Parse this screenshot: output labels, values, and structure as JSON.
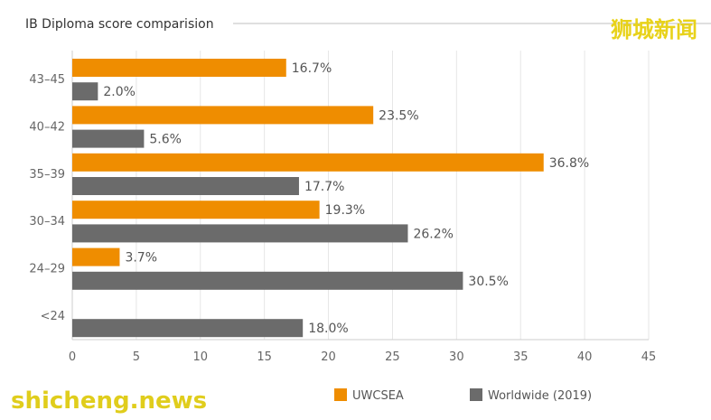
{
  "chart_data": {
    "type": "bar",
    "orientation": "horizontal",
    "title": "IB Diploma score comparision",
    "categories": [
      "43–45",
      "40–42",
      "35–39",
      "30–34",
      "24–29",
      "<24"
    ],
    "series": [
      {
        "name": "UWCSEA",
        "color": "#ef8d00",
        "values": [
          16.7,
          23.5,
          36.8,
          19.3,
          3.7,
          null
        ],
        "labels": [
          "16.7%",
          "23.5%",
          "36.8%",
          "19.3%",
          "3.7%",
          ""
        ]
      },
      {
        "name": "Worldwide (2019)",
        "color": "#6b6b6b",
        "values": [
          2.0,
          5.6,
          17.7,
          26.2,
          30.5,
          18.0
        ],
        "labels": [
          "2.0%",
          "5.6%",
          "17.7%",
          "26.2%",
          "30.5%",
          "18.0%"
        ]
      }
    ],
    "xlim": [
      0,
      45
    ],
    "xticks": [
      "0",
      "5",
      "10",
      "15",
      "20",
      "25",
      "30",
      "35",
      "40",
      "45"
    ],
    "grid": true,
    "legend_position": "bottom-right"
  },
  "watermarks": {
    "top_right": "狮城新闻",
    "bottom_left": "shicheng.news"
  }
}
